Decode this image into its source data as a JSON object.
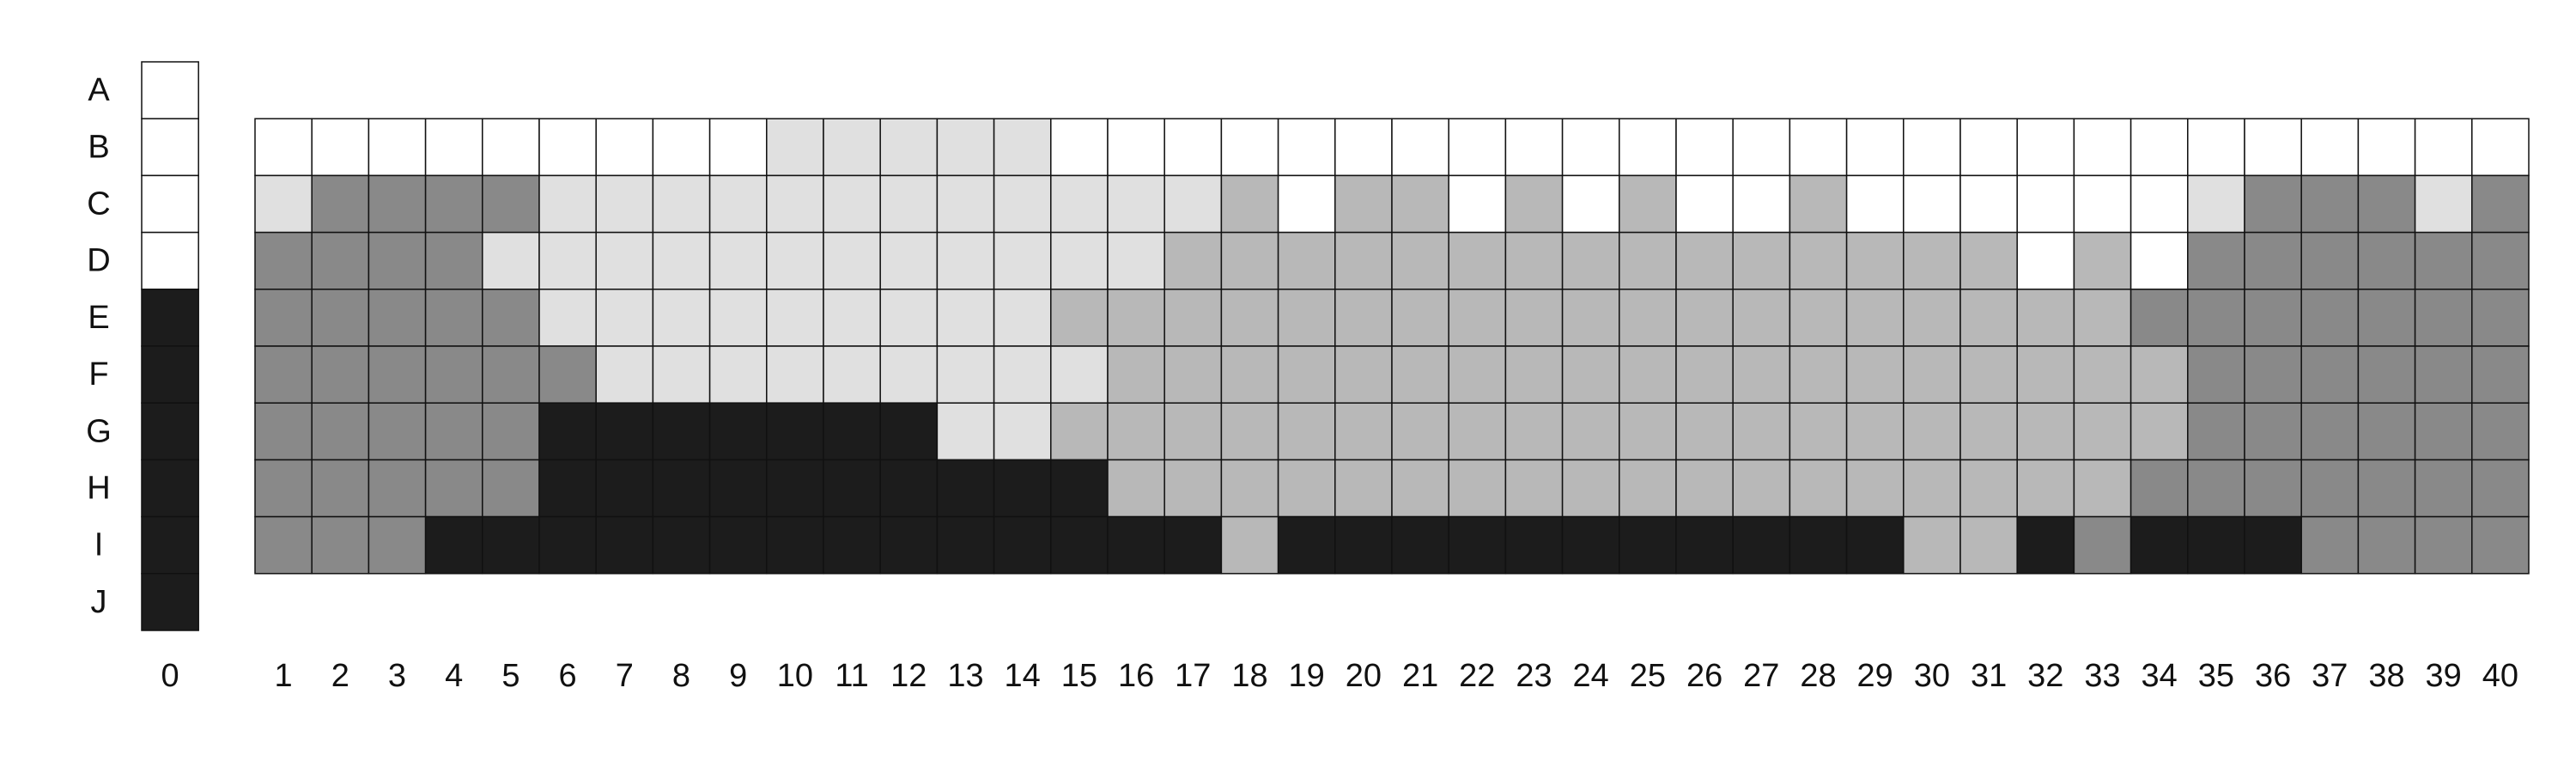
{
  "chart_data": {
    "type": "heatmap",
    "row_labels": [
      "A",
      "B",
      "C",
      "D",
      "E",
      "F",
      "G",
      "H",
      "I",
      "J"
    ],
    "key_column_label": "0",
    "column_labels": [
      "1",
      "2",
      "3",
      "4",
      "5",
      "6",
      "7",
      "8",
      "9",
      "10",
      "11",
      "12",
      "13",
      "14",
      "15",
      "16",
      "17",
      "18",
      "19",
      "20",
      "21",
      "22",
      "23",
      "24",
      "25",
      "26",
      "27",
      "28",
      "29",
      "30",
      "31",
      "32",
      "33",
      "34",
      "35",
      "36",
      "37",
      "38",
      "39",
      "40"
    ],
    "value_scale": {
      "0": "#ffffff",
      "1": "#e0e0e0",
      "2": "#b8b8b8",
      "3": "#898989",
      "4": "#1c1c1c"
    },
    "key_column": {
      "A": 0,
      "B": 0,
      "C": 0,
      "D": 0,
      "E": 4,
      "F": 4,
      "G": 4,
      "H": 4,
      "I": 4,
      "J": 4
    },
    "grid_rows": [
      "B",
      "C",
      "D",
      "E",
      "F",
      "G",
      "H",
      "I"
    ],
    "grid": [
      [
        0,
        0,
        0,
        0,
        0,
        0,
        0,
        0,
        0,
        1,
        1,
        1,
        1,
        1,
        0,
        0,
        0,
        0,
        0,
        0,
        0,
        0,
        0,
        0,
        0,
        0,
        0,
        0,
        0,
        0,
        0,
        0,
        0,
        0,
        0,
        0,
        0,
        0,
        0,
        0
      ],
      [
        1,
        3,
        3,
        3,
        3,
        1,
        1,
        1,
        1,
        1,
        1,
        1,
        1,
        1,
        1,
        1,
        1,
        2,
        0,
        2,
        2,
        0,
        2,
        0,
        2,
        0,
        0,
        2,
        0,
        0,
        0,
        0,
        0,
        0,
        1,
        3,
        3,
        3,
        1,
        3
      ],
      [
        3,
        3,
        3,
        3,
        1,
        1,
        1,
        1,
        1,
        1,
        1,
        1,
        1,
        1,
        1,
        1,
        2,
        2,
        2,
        2,
        2,
        2,
        2,
        2,
        2,
        2,
        2,
        2,
        2,
        2,
        2,
        0,
        2,
        0,
        3,
        3,
        3,
        3,
        3,
        3
      ],
      [
        3,
        3,
        3,
        3,
        3,
        1,
        1,
        1,
        1,
        1,
        1,
        1,
        1,
        1,
        2,
        2,
        2,
        2,
        2,
        2,
        2,
        2,
        2,
        2,
        2,
        2,
        2,
        2,
        2,
        2,
        2,
        2,
        2,
        3,
        3,
        3,
        3,
        3,
        3,
        3
      ],
      [
        3,
        3,
        3,
        3,
        3,
        3,
        1,
        1,
        1,
        1,
        1,
        1,
        1,
        1,
        1,
        2,
        2,
        2,
        2,
        2,
        2,
        2,
        2,
        2,
        2,
        2,
        2,
        2,
        2,
        2,
        2,
        2,
        2,
        2,
        3,
        3,
        3,
        3,
        3,
        3
      ],
      [
        3,
        3,
        3,
        3,
        3,
        4,
        4,
        4,
        4,
        4,
        4,
        4,
        1,
        1,
        2,
        2,
        2,
        2,
        2,
        2,
        2,
        2,
        2,
        2,
        2,
        2,
        2,
        2,
        2,
        2,
        2,
        2,
        2,
        2,
        3,
        3,
        3,
        3,
        3,
        3
      ],
      [
        3,
        3,
        3,
        3,
        3,
        4,
        4,
        4,
        4,
        4,
        4,
        4,
        4,
        4,
        4,
        2,
        2,
        2,
        2,
        2,
        2,
        2,
        2,
        2,
        2,
        2,
        2,
        2,
        2,
        2,
        2,
        2,
        2,
        3,
        3,
        3,
        3,
        3,
        3,
        3
      ],
      [
        3,
        3,
        3,
        4,
        4,
        4,
        4,
        4,
        4,
        4,
        4,
        4,
        4,
        4,
        4,
        4,
        4,
        2,
        4,
        4,
        4,
        4,
        4,
        4,
        4,
        4,
        4,
        4,
        4,
        2,
        2,
        4,
        3,
        4,
        4,
        4,
        3,
        3,
        3,
        3
      ]
    ]
  }
}
